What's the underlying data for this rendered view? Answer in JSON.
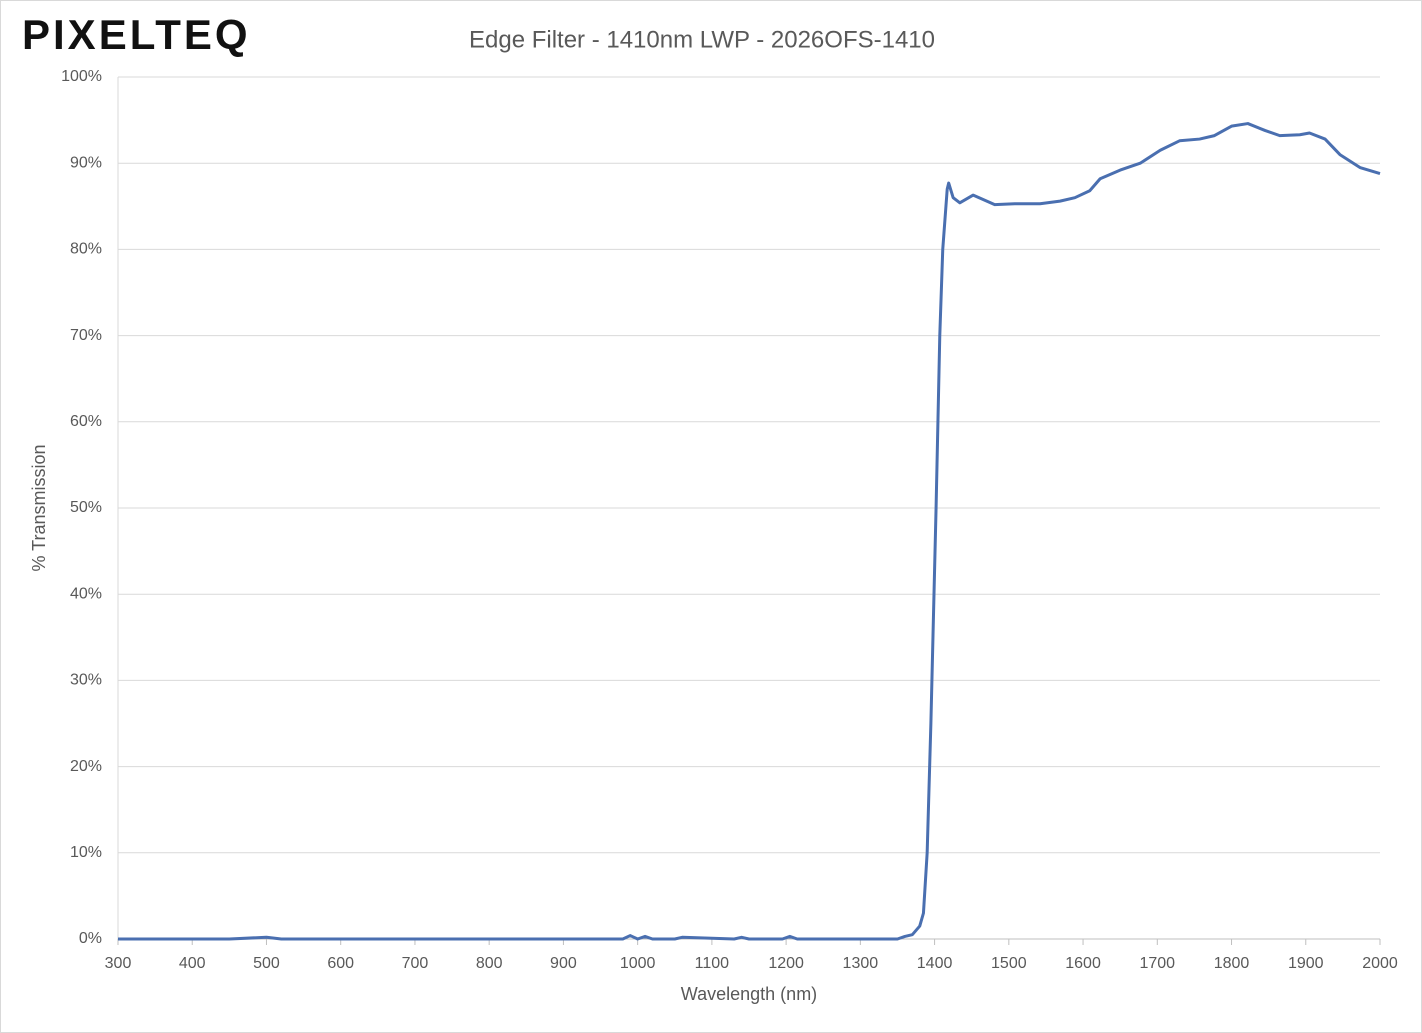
{
  "chart_data": {
    "type": "line",
    "logo": "PIXELTEQ",
    "title": "Edge Filter - 1410nm LWP - 2026OFS-1410",
    "x_label": "Wavelength (nm)",
    "y_label": "% Transmission",
    "xlim": [
      300,
      2000
    ],
    "xticks": [
      300,
      400,
      500,
      600,
      700,
      800,
      900,
      1000,
      1100,
      1200,
      1300,
      1400,
      1500,
      1600,
      1700,
      1800,
      1900,
      2000
    ],
    "ylim": [
      0,
      100
    ],
    "yticks": [
      {
        "value": 0,
        "label": "0%"
      },
      {
        "value": 10,
        "label": "10%"
      },
      {
        "value": 20,
        "label": "20%"
      },
      {
        "value": 30,
        "label": "30%"
      },
      {
        "value": 40,
        "label": "40%"
      },
      {
        "value": 50,
        "label": "50%"
      },
      {
        "value": 60,
        "label": "60%"
      },
      {
        "value": 70,
        "label": "70%"
      },
      {
        "value": 80,
        "label": "80%"
      },
      {
        "value": 90,
        "label": "90%"
      },
      {
        "value": 100,
        "label": "100%"
      }
    ],
    "grid": true,
    "series": [
      {
        "color": "#4a6fb0",
        "x": [
          300,
          450,
          500,
          520,
          700,
          850,
          980,
          990,
          1000,
          1010,
          1020,
          1050,
          1060,
          1130,
          1140,
          1150,
          1195,
          1205,
          1215,
          1300,
          1350,
          1360,
          1370,
          1380,
          1385,
          1390,
          1395,
          1402,
          1407,
          1411,
          1417,
          1419,
          1425,
          1434,
          1452,
          1481,
          1508,
          1542,
          1569,
          1589,
          1609,
          1623,
          1650,
          1677,
          1704,
          1730,
          1757,
          1777,
          1800,
          1822,
          1845,
          1865,
          1892,
          1905,
          1926,
          1946,
          1973,
          2000
        ],
        "values": [
          0,
          0,
          0.2,
          0,
          0,
          0,
          0,
          0.4,
          0,
          0.3,
          0,
          0,
          0.2,
          0,
          0.2,
          0,
          0,
          0.3,
          0,
          0,
          0,
          0.3,
          0.5,
          1.5,
          3,
          10,
          25,
          50,
          70,
          80,
          87,
          87.7,
          86,
          85.4,
          86.3,
          85.2,
          85.3,
          85.3,
          85.6,
          86,
          86.8,
          88.2,
          89.2,
          90,
          91.5,
          92.6,
          92.8,
          93.2,
          94.3,
          94.6,
          93.8,
          93.2,
          93.3,
          93.5,
          92.8,
          91,
          89.5,
          88.8
        ]
      }
    ]
  }
}
